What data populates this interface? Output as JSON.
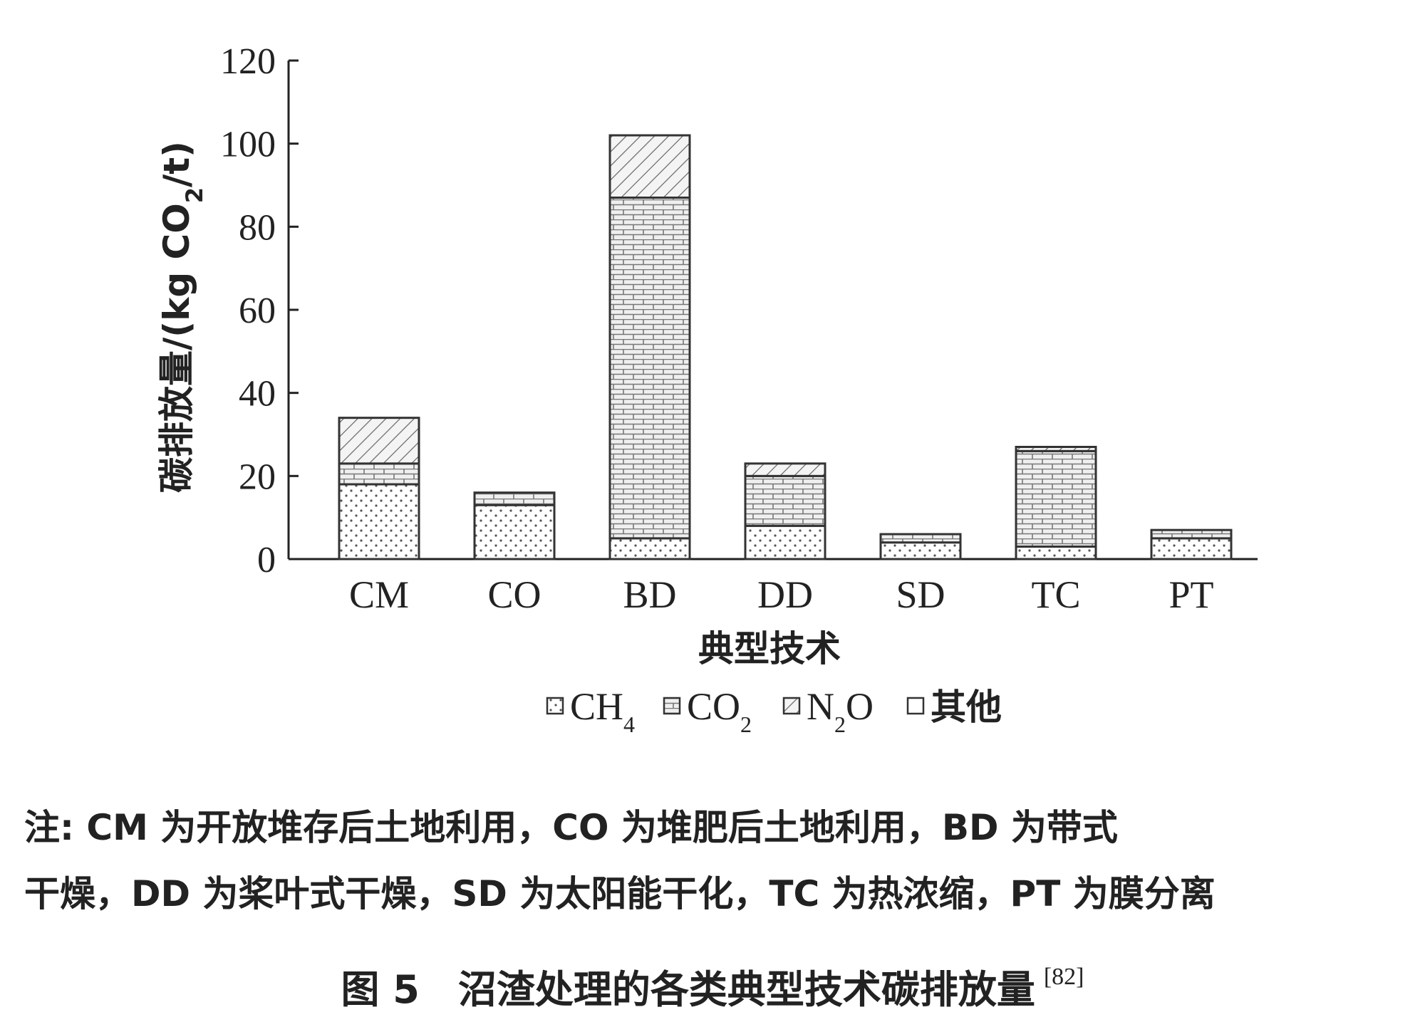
{
  "chart_data": {
    "type": "bar",
    "stacked": true,
    "categories": [
      "CM",
      "CO",
      "BD",
      "DD",
      "SD",
      "TC",
      "PT"
    ],
    "series": [
      {
        "name": "CH4",
        "pattern": "dots",
        "values": [
          18,
          13,
          5,
          8,
          4,
          3,
          5
        ]
      },
      {
        "name": "CO2",
        "pattern": "bricks",
        "values": [
          5,
          3,
          82,
          12,
          2,
          23,
          2
        ]
      },
      {
        "name": "N2O",
        "pattern": "hatch",
        "values": [
          11,
          0,
          15,
          3,
          0,
          1,
          0
        ]
      },
      {
        "name": "其他",
        "pattern": "empty",
        "values": [
          0,
          0,
          0,
          0,
          0,
          0,
          0
        ]
      }
    ],
    "xlabel": "典型技术",
    "ylabel": "碳排放量/(kg CO2/t)",
    "yticks": [
      "0",
      "20",
      "40",
      "60",
      "80",
      "100",
      "120"
    ],
    "ylim": [
      0,
      120
    ],
    "grid": false,
    "legend_position": "bottom"
  },
  "note": {
    "line1": "注: CM 为开放堆存后土地利用，CO 为堆肥后土地利用，BD 为带式",
    "line2": "干燥，DD 为桨叶式干燥，SD 为太阳能干化，TC 为热浓缩，PT 为膜分离"
  },
  "caption": {
    "text": "图 5　沼渣处理的各类典型技术碳排放量",
    "ref": "[82]"
  },
  "colors": {
    "ink": "#222222",
    "bar_edge": "#333333",
    "background": "#ffffff"
  }
}
